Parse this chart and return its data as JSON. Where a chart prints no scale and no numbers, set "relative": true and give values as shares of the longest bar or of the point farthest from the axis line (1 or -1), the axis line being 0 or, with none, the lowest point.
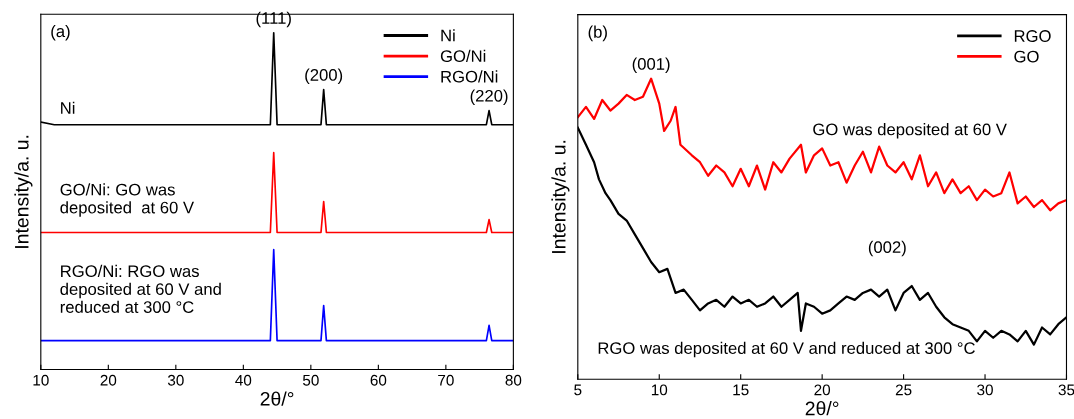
{
  "chart_data": [
    {
      "type": "line",
      "title": "(a)",
      "xlabel": "2θ/°",
      "ylabel": "Intensity/a. u.",
      "relative": true,
      "tick_labels": "x",
      "legend": "top right",
      "grid": false,
      "xlim": [
        10,
        80
      ],
      "xticks": [
        10,
        20,
        30,
        40,
        50,
        60,
        70,
        80
      ],
      "series": [
        {
          "name": "Ni",
          "color": "#000000",
          "x": [
            10,
            12,
            20,
            30,
            40,
            44.0,
            44.5,
            45.0,
            51.5,
            51.9,
            52.3,
            76.0,
            76.4,
            76.8,
            80
          ],
          "values": [
            0.735,
            0.727,
            0.727,
            0.727,
            0.727,
            0.727,
            1.0,
            0.727,
            0.727,
            0.831,
            0.727,
            0.727,
            0.769,
            0.727,
            0.727
          ]
        },
        {
          "name": "GO/Ni",
          "color": "#ff0000",
          "x": [
            10,
            20,
            30,
            40,
            44.0,
            44.5,
            45.0,
            51.5,
            51.9,
            52.3,
            76.0,
            76.4,
            76.8,
            80
          ],
          "values": [
            0.407,
            0.407,
            0.407,
            0.407,
            0.407,
            0.644,
            0.407,
            0.407,
            0.499,
            0.407,
            0.407,
            0.445,
            0.407,
            0.407
          ]
        },
        {
          "name": "RGO/Ni",
          "color": "#0000ff",
          "x": [
            10,
            20,
            30,
            40,
            44.0,
            44.5,
            45.0,
            51.5,
            51.9,
            52.3,
            76.0,
            76.4,
            76.8,
            80
          ],
          "values": [
            0.086,
            0.086,
            0.086,
            0.086,
            0.086,
            0.356,
            0.086,
            0.086,
            0.19,
            0.086,
            0.086,
            0.131,
            0.086,
            0.086
          ]
        }
      ],
      "annotations": [
        {
          "text": "(111)",
          "x": 44.5,
          "y": 1.0
        },
        {
          "text": "(200)",
          "x": 51.9,
          "y": 0.831
        },
        {
          "text": "(220)",
          "x": 76.4,
          "y": 0.769
        },
        "Ni",
        "GO/Ni: GO was\ndeposited  at 60 V",
        "RGO/Ni: RGO was\ndeposited at 60 V and\nreduced at 300 °C"
      ]
    },
    {
      "type": "line",
      "title": "(b)",
      "xlabel": "2θ/°",
      "ylabel": "Intensity/a. u.",
      "relative": true,
      "tick_labels": "x",
      "legend": "top right",
      "grid": false,
      "xlim": [
        5,
        35
      ],
      "xticks": [
        5,
        10,
        15,
        20,
        25,
        30,
        35
      ],
      "series": [
        {
          "name": "RGO",
          "color": "#000000",
          "x": [
            5,
            5.5,
            6,
            6.3,
            6.7,
            7,
            7.5,
            8,
            8.5,
            9,
            9.5,
            10,
            10.5,
            11,
            11.5,
            12,
            12.5,
            13,
            13.5,
            14,
            14.5,
            15,
            15.5,
            16,
            16.5,
            17,
            17.5,
            18,
            18.5,
            18.7,
            19,
            19.5,
            20,
            20.5,
            21,
            21.5,
            22,
            22.5,
            23,
            23.5,
            24,
            24.5,
            25,
            25.5,
            26,
            26.5,
            27,
            27.5,
            28,
            28.5,
            29,
            29.5,
            30,
            30.5,
            31,
            31.5,
            32,
            32.5,
            33,
            33.5,
            34,
            34.5,
            35
          ],
          "values": [
            0.837,
            0.78,
            0.722,
            0.665,
            0.619,
            0.596,
            0.55,
            0.528,
            0.482,
            0.436,
            0.39,
            0.356,
            0.367,
            0.287,
            0.298,
            0.264,
            0.229,
            0.252,
            0.264,
            0.241,
            0.275,
            0.252,
            0.264,
            0.241,
            0.252,
            0.275,
            0.241,
            0.264,
            0.287,
            0.161,
            0.252,
            0.241,
            0.218,
            0.229,
            0.252,
            0.275,
            0.264,
            0.287,
            0.298,
            0.275,
            0.298,
            0.229,
            0.287,
            0.31,
            0.264,
            0.287,
            0.241,
            0.206,
            0.183,
            0.172,
            0.161,
            0.126,
            0.161,
            0.138,
            0.161,
            0.149,
            0.126,
            0.161,
            0.115,
            0.172,
            0.149,
            0.183,
            0.206
          ]
        },
        {
          "name": "GO",
          "color": "#ff0000",
          "x": [
            5,
            5.5,
            6,
            6.5,
            7,
            7.5,
            8,
            8.5,
            9,
            9.5,
            10,
            10.3,
            10.7,
            11,
            11.3,
            12,
            12.5,
            13,
            13.5,
            14,
            14.5,
            15,
            15.5,
            16,
            16.5,
            17,
            17.5,
            18,
            18.7,
            19,
            19.5,
            20,
            20.5,
            21,
            21.5,
            22,
            22.5,
            23,
            23.5,
            24,
            24.5,
            25,
            25.5,
            26,
            26.5,
            27,
            27.5,
            28,
            28.5,
            29,
            29.5,
            30,
            30.5,
            31,
            31.5,
            32,
            32.5,
            33,
            33.5,
            34,
            34.5,
            35
          ],
          "values": [
            0.872,
            0.906,
            0.866,
            0.929,
            0.894,
            0.917,
            0.946,
            0.929,
            0.94,
            1.0,
            0.917,
            0.826,
            0.86,
            0.906,
            0.78,
            0.745,
            0.722,
            0.677,
            0.711,
            0.688,
            0.642,
            0.7,
            0.642,
            0.711,
            0.631,
            0.722,
            0.688,
            0.734,
            0.78,
            0.688,
            0.745,
            0.768,
            0.711,
            0.722,
            0.654,
            0.711,
            0.757,
            0.688,
            0.774,
            0.711,
            0.688,
            0.722,
            0.665,
            0.745,
            0.642,
            0.688,
            0.619,
            0.665,
            0.619,
            0.642,
            0.596,
            0.631,
            0.608,
            0.619,
            0.688,
            0.585,
            0.608,
            0.573,
            0.596,
            0.562,
            0.585,
            0.596
          ]
        }
      ],
      "annotations": [
        {
          "text": "(001)",
          "x": 9.5,
          "y": 1.0
        },
        {
          "text": "(002)",
          "x": 24,
          "y": 0.298
        },
        "GO was deposited at 60 V",
        "RGO was deposited at 60 V and reduced at 300 °C"
      ]
    }
  ]
}
